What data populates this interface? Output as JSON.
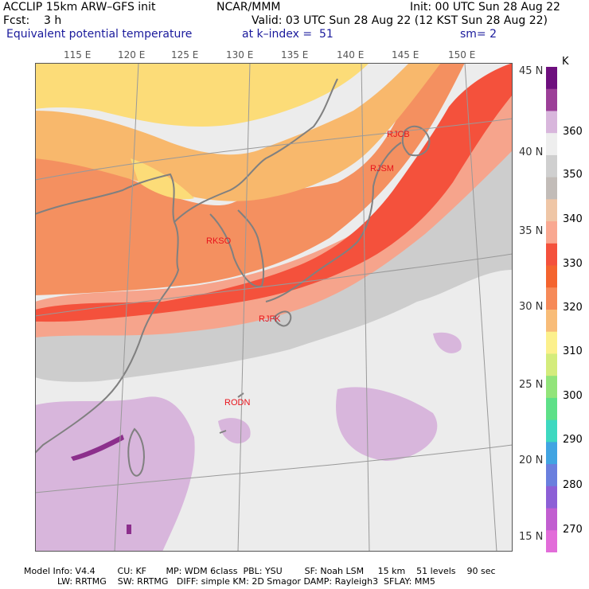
{
  "header": {
    "line1_left": "ACCLIP 15km ARW–GFS init",
    "line1_mid": "NCAR/MMM",
    "line1_right": "Init: 00 UTC Sun 28 Aug 22",
    "line2_left": "Fcst:    3 h",
    "line2_right": "Valid: 03 UTC Sun 28 Aug 22 (12 KST Sun 28 Aug 22)",
    "line3_left": "Equivalent potential temperature",
    "line3_mid": "at k–index =  51",
    "line3_right": "sm= 2"
  },
  "axes": {
    "lon_labels": [
      "115 E",
      "120 E",
      "125 E",
      "130 E",
      "135 E",
      "140 E",
      "145 E",
      "150 E"
    ],
    "lat_labels": [
      "45 N",
      "40 N",
      "35 N",
      "30 N",
      "25 N",
      "20 N",
      "15 N"
    ]
  },
  "stations": [
    {
      "id": "RJCB"
    },
    {
      "id": "RJSM"
    },
    {
      "id": "RKSO"
    },
    {
      "id": "RJFK"
    },
    {
      "id": "RODN"
    }
  ],
  "colorbar": {
    "unit": "K",
    "ticks": [
      "360",
      "350",
      "340",
      "330",
      "320",
      "310",
      "300",
      "290",
      "280",
      "270"
    ],
    "colors": [
      "#6e0f7e",
      "#9c3f98",
      "#d8b6dc",
      "#eeeeee",
      "#cfcfcf",
      "#c2bcb8",
      "#efc6a6",
      "#f9a891",
      "#f4513c",
      "#f4642e",
      "#f68a58",
      "#f8bc78",
      "#fcf08c",
      "#d4ec7c",
      "#92e47a",
      "#5ee088",
      "#3ed8c0",
      "#41a4e2",
      "#6a7fde",
      "#8c5fd6",
      "#c15ed0",
      "#e26cd9"
    ]
  },
  "footer": {
    "line1": "Model Info: V4.4        CU: KF       MP: WDM 6class  PBL: YSU        SF: Noah LSM     15 km    51 levels    90 sec",
    "line2": "LW: RRTMG    SW: RRTMG   DIFF: simple KM: 2D Smagor DAMP: Rayleigh3  SFLAY: MM5"
  },
  "colors": {
    "yellow": "#fcdc78",
    "orange": "#f8b86c",
    "dark_orange": "#f49060",
    "red": "#f4513c",
    "salmon": "#f6a48c",
    "gray": "#c9c9c9",
    "light_gray": "#ececec",
    "lilac": "#d8b6dc",
    "purple": "#8c2f8c",
    "land_line": "#808080",
    "station_text": "#e8141c"
  }
}
